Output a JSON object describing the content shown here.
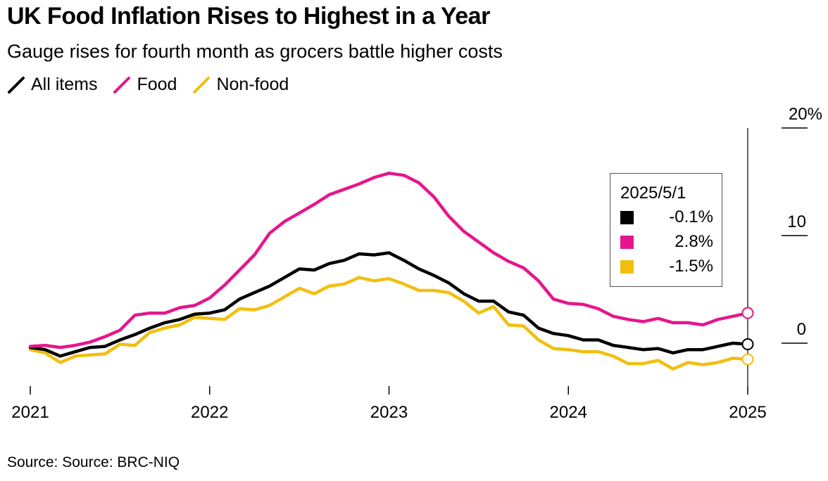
{
  "title": "UK Food Inflation Rises to Highest in a Year",
  "subtitle": "Gauge rises for fourth month as grocers battle higher costs",
  "source": "Source: Source: BRC-NIQ",
  "colors": {
    "all_items": "#000000",
    "food": "#e5168d",
    "non_food": "#f2bf0f"
  },
  "callout": {
    "date": "2025/5/1",
    "rows": [
      {
        "key": "all_items",
        "value": "-0.1%"
      },
      {
        "key": "food",
        "value": "2.8%"
      },
      {
        "key": "non_food",
        "value": "-1.5%"
      }
    ]
  },
  "chart_data": {
    "type": "line",
    "title": "UK Food Inflation Rises to Highest in a Year",
    "subtitle": "Gauge rises for fourth month as grocers battle higher costs",
    "x_start": "2021-01",
    "x_end": "2025-05",
    "x_ticks": [
      "2021",
      "2022",
      "2023",
      "2024",
      "2025"
    ],
    "y_ticks": [
      "20%",
      "10",
      "0"
    ],
    "ylim": [
      -4,
      20
    ],
    "legend_position": "top-left",
    "grid": false,
    "series": [
      {
        "name": "All items",
        "key": "all_items",
        "values": [
          -0.4,
          -0.6,
          -1.2,
          -0.8,
          -0.4,
          -0.3,
          0.3,
          0.8,
          1.4,
          1.9,
          2.2,
          2.7,
          2.8,
          3.1,
          4.1,
          4.7,
          5.3,
          6.1,
          6.9,
          6.8,
          7.4,
          7.7,
          8.3,
          8.2,
          8.4,
          7.7,
          6.9,
          6.3,
          5.6,
          4.6,
          3.9,
          3.9,
          2.9,
          2.6,
          1.4,
          0.9,
          0.7,
          0.3,
          0.3,
          -0.2,
          -0.4,
          -0.6,
          -0.5,
          -0.9,
          -0.6,
          -0.6,
          -0.3,
          0.0,
          -0.1
        ]
      },
      {
        "name": "Food",
        "key": "food",
        "values": [
          -0.3,
          -0.2,
          -0.4,
          -0.2,
          0.1,
          0.6,
          1.2,
          2.6,
          2.8,
          2.8,
          3.3,
          3.5,
          4.2,
          5.4,
          6.8,
          8.2,
          10.2,
          11.3,
          12.1,
          12.9,
          13.8,
          14.3,
          14.8,
          15.4,
          15.8,
          15.6,
          14.9,
          13.6,
          11.8,
          10.4,
          9.4,
          8.4,
          7.6,
          7.0,
          5.8,
          4.1,
          3.7,
          3.6,
          3.2,
          2.5,
          2.2,
          2.0,
          2.3,
          1.9,
          1.9,
          1.7,
          2.2,
          2.5,
          2.8
        ]
      },
      {
        "name": "Non-food",
        "key": "non_food",
        "values": [
          -0.6,
          -0.9,
          -1.8,
          -1.2,
          -1.1,
          -1.0,
          -0.1,
          -0.2,
          1.0,
          1.4,
          1.7,
          2.4,
          2.3,
          2.2,
          3.2,
          3.1,
          3.5,
          4.3,
          5.1,
          4.6,
          5.3,
          5.5,
          6.1,
          5.8,
          6.0,
          5.5,
          4.9,
          4.9,
          4.7,
          3.9,
          2.8,
          3.4,
          1.7,
          1.6,
          0.3,
          -0.5,
          -0.6,
          -0.8,
          -0.8,
          -1.2,
          -1.9,
          -1.9,
          -1.6,
          -2.4,
          -1.8,
          -2.0,
          -1.8,
          -1.4,
          -1.5
        ]
      }
    ]
  }
}
